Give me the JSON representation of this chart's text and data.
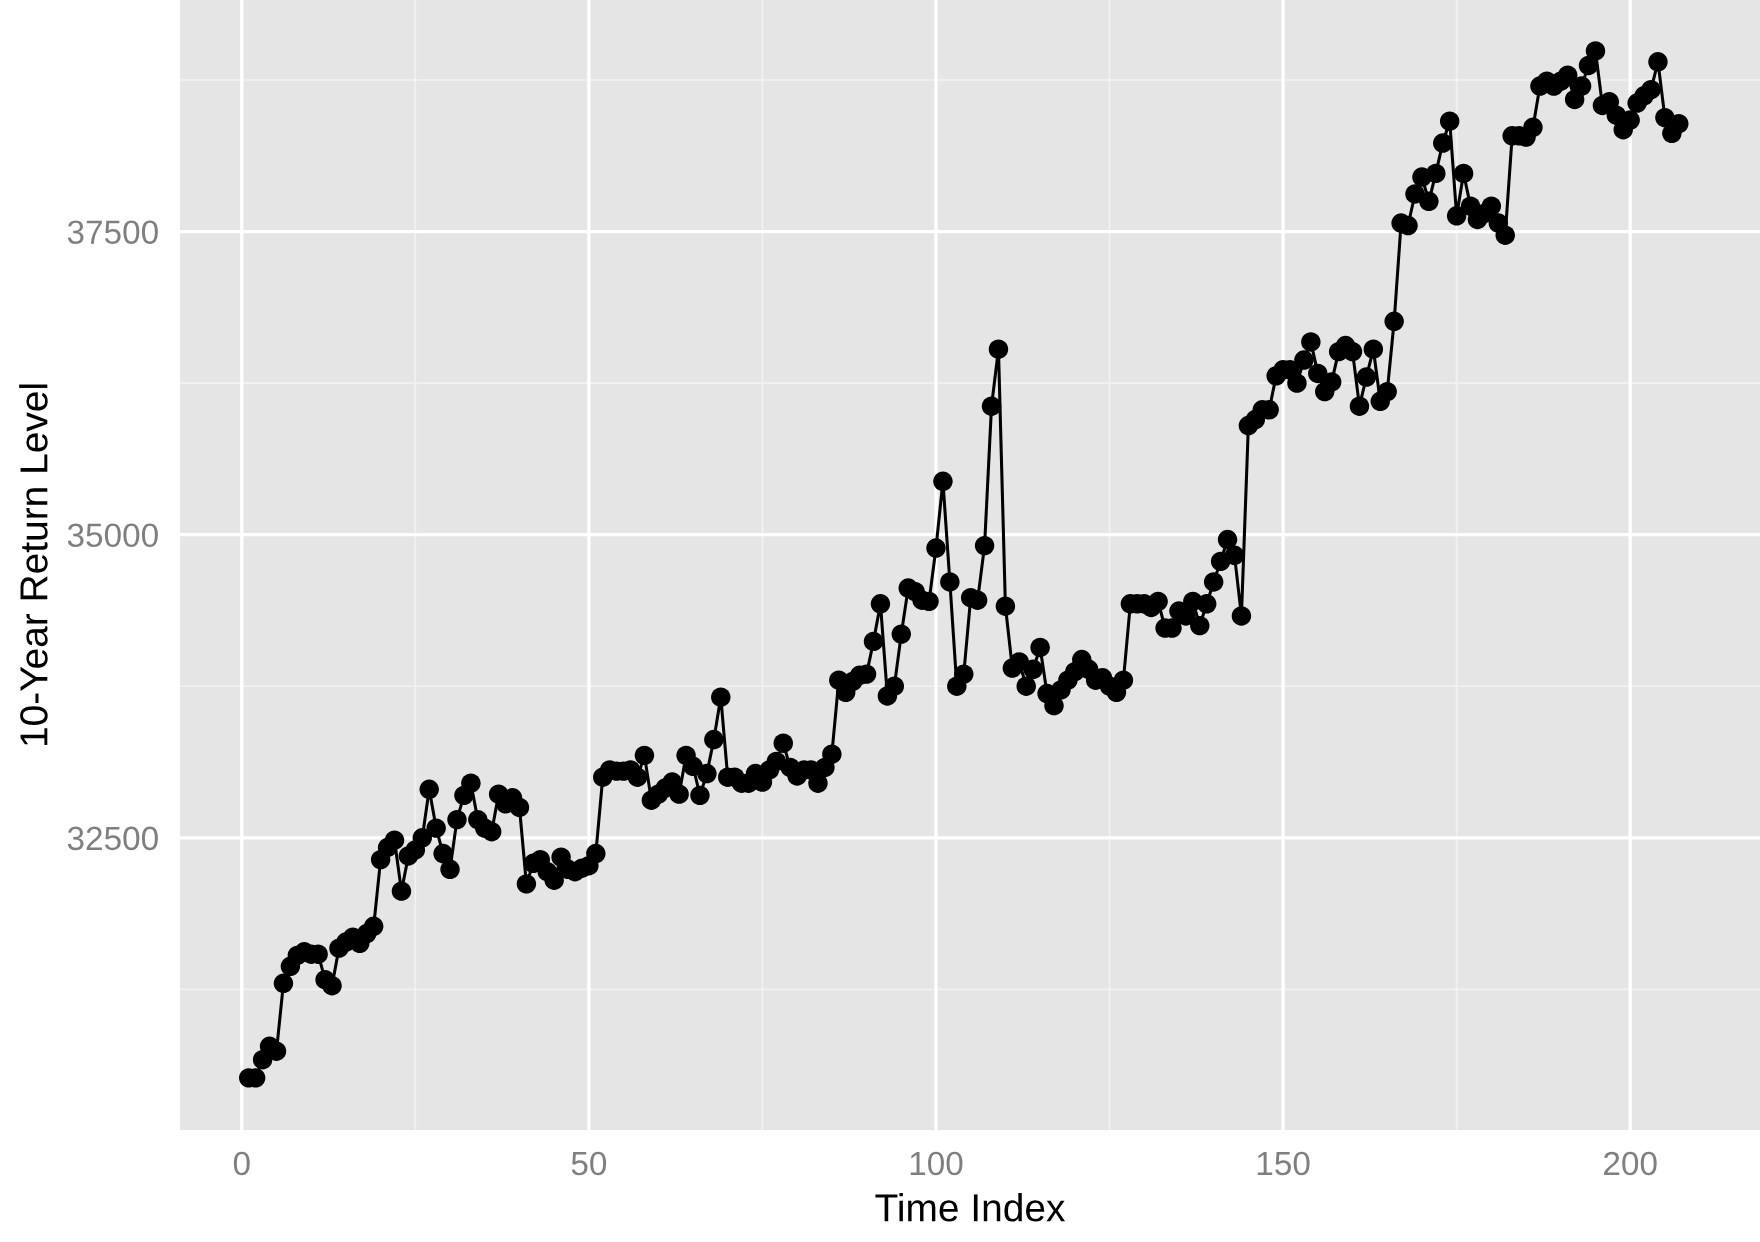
{
  "chart_data": {
    "type": "line",
    "xlabel": "Time Index",
    "ylabel": "10-Year Return Level",
    "x": [
      1,
      2,
      3,
      4,
      5,
      6,
      7,
      8,
      9,
      10,
      11,
      12,
      13,
      14,
      15,
      16,
      17,
      18,
      19,
      20,
      21,
      22,
      23,
      24,
      25,
      26,
      27,
      28,
      29,
      30,
      31,
      32,
      33,
      34,
      35,
      36,
      37,
      38,
      39,
      40,
      41,
      42,
      43,
      44,
      45,
      46,
      47,
      48,
      49,
      50,
      51,
      52,
      53,
      54,
      55,
      56,
      57,
      58,
      59,
      60,
      61,
      62,
      63,
      64,
      65,
      66,
      67,
      68,
      69,
      70,
      71,
      72,
      73,
      74,
      75,
      76,
      77,
      78,
      79,
      80,
      81,
      82,
      83,
      84,
      85,
      86,
      87,
      88,
      89,
      90,
      91,
      92,
      93,
      94,
      95,
      96,
      97,
      98,
      99,
      100,
      101,
      102,
      103,
      104,
      105,
      106,
      107,
      108,
      109,
      110,
      111,
      112,
      113,
      114,
      115,
      116,
      117,
      118,
      119,
      120,
      121,
      122,
      123,
      124,
      125,
      126,
      127,
      128,
      129,
      130,
      131,
      132,
      133,
      134,
      135,
      136,
      137,
      138,
      139,
      140,
      141,
      142,
      143,
      144,
      145,
      146,
      147,
      148,
      149,
      150,
      151,
      152,
      153,
      154,
      155,
      156,
      157,
      158,
      159,
      160,
      161,
      162,
      163,
      164,
      165,
      166,
      167,
      168,
      169,
      170,
      171,
      172,
      173,
      174,
      175,
      176,
      177,
      178,
      179,
      180,
      181,
      182,
      183,
      184,
      185,
      186,
      187,
      188,
      189,
      190,
      191,
      192,
      193,
      194,
      195,
      196,
      197,
      198,
      199,
      200,
      201,
      202,
      203,
      204,
      205,
      206,
      207
    ],
    "series": [
      {
        "color": "#000000",
        "values": [
          30520,
          30520,
          30670,
          30780,
          30740,
          31300,
          31440,
          31530,
          31560,
          31540,
          31540,
          31330,
          31280,
          31590,
          31640,
          31680,
          31630,
          31710,
          31770,
          32320,
          32420,
          32480,
          32060,
          32350,
          32400,
          32500,
          32900,
          32580,
          32370,
          32240,
          32650,
          32850,
          32950,
          32650,
          32580,
          32550,
          32860,
          32780,
          32830,
          32750,
          32120,
          32290,
          32320,
          32220,
          32150,
          32340,
          32240,
          32220,
          32250,
          32270,
          32370,
          33000,
          33060,
          33050,
          33050,
          33060,
          33000,
          33180,
          32810,
          32860,
          32910,
          32960,
          32860,
          33180,
          33090,
          32850,
          33030,
          33310,
          33660,
          33000,
          33000,
          32950,
          32950,
          33030,
          32960,
          33060,
          33130,
          33280,
          33080,
          33010,
          33060,
          33060,
          32950,
          33080,
          33190,
          33800,
          33700,
          33790,
          33840,
          33850,
          34120,
          34430,
          33670,
          33750,
          34180,
          34560,
          34530,
          34460,
          34450,
          34890,
          35440,
          34610,
          33750,
          33850,
          34480,
          34460,
          34910,
          36060,
          36530,
          34410,
          33900,
          33950,
          33750,
          33890,
          34070,
          33690,
          33590,
          33720,
          33800,
          33870,
          33970,
          33890,
          33800,
          33820,
          33750,
          33700,
          33800,
          34430,
          34430,
          34430,
          34400,
          34450,
          34230,
          34230,
          34370,
          34330,
          34450,
          34250,
          34430,
          34610,
          34780,
          34960,
          34830,
          34330,
          35900,
          35950,
          36030,
          36030,
          36310,
          36360,
          36360,
          36250,
          36440,
          36590,
          36330,
          36180,
          36260,
          36510,
          36560,
          36510,
          36060,
          36300,
          36530,
          36100,
          36180,
          36760,
          37570,
          37550,
          37810,
          37950,
          37750,
          37980,
          38230,
          38410,
          37630,
          37980,
          37710,
          37600,
          37650,
          37710,
          37570,
          37470,
          38290,
          38290,
          38280,
          38360,
          38700,
          38740,
          38700,
          38740,
          38790,
          38590,
          38700,
          38870,
          38990,
          38540,
          38570,
          38460,
          38340,
          38420,
          38560,
          38620,
          38670,
          38900,
          38440,
          38310,
          38390
        ]
      }
    ],
    "xlim": [
      -8.9,
      218.7
    ],
    "ylim": [
      30090,
      39410
    ],
    "xticks": [
      0,
      50,
      100,
      150,
      200
    ],
    "yticks": [
      32500,
      35000,
      37500
    ],
    "grid": true,
    "marker": "circle",
    "line_style": "solid",
    "legend": false
  }
}
